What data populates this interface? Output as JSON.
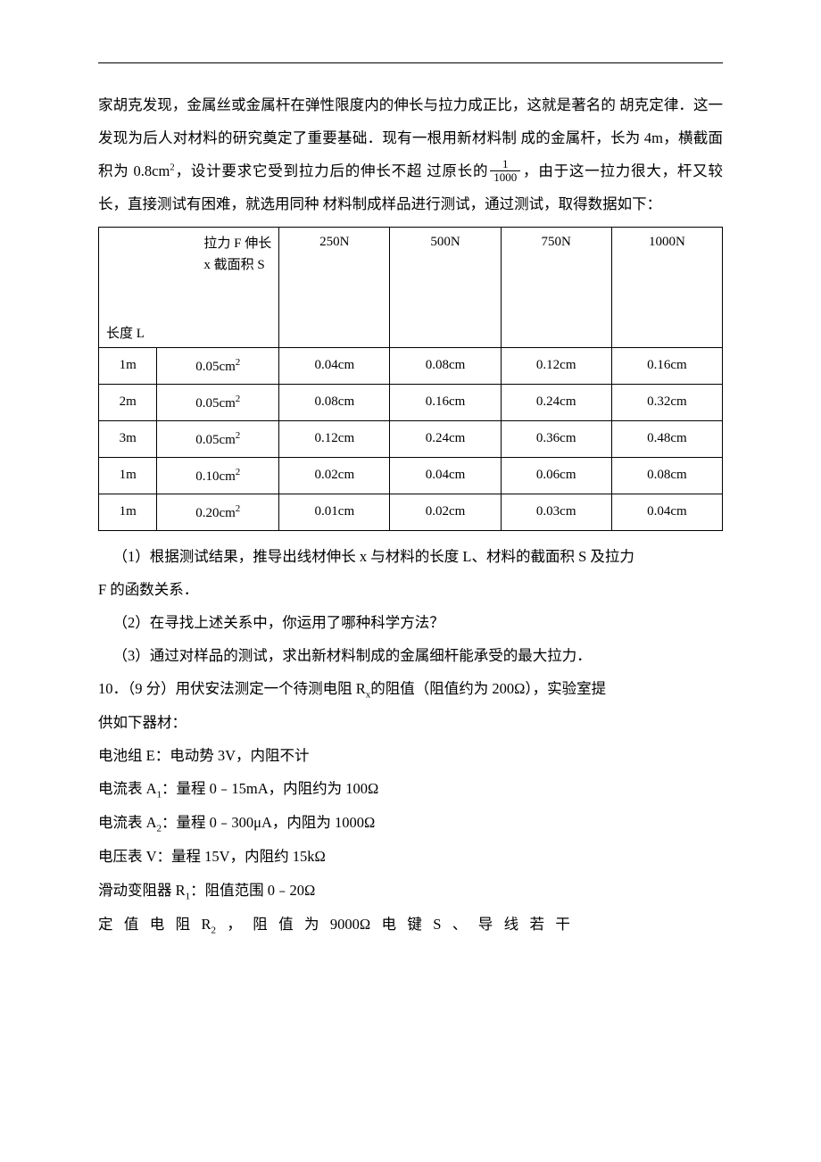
{
  "intro": {
    "l1": "家胡克发现，金属丝或金属杆在弹性限度内的伸长与拉力成正比，这就是著名的",
    "l2": "胡克定律．这一发现为后人对材料的研究奠定了重要基础．现有一根用新材料制",
    "l3_a": "成的金属杆，长为 4m，横截面积为 0.8cm",
    "l3_b": "，设计要求它受到拉力后的伸长不超",
    "l4_a": "过原长的",
    "frac_num": "1",
    "frac_den": "1000",
    "l4_b": "，由于这一拉力很大，杆又较长，直接测试有困难，就选用同种",
    "l5": "材料制成样品进行测试，通过测试，取得数据如下："
  },
  "table": {
    "diag_top_1": "拉力 F 伸长",
    "diag_top_2": "x 截面积 S",
    "diag_bottom": "长度 L",
    "force_cols": [
      "250N",
      "500N",
      "750N",
      "1000N"
    ],
    "rows": [
      {
        "L": "1m",
        "S": "0.05cm",
        "vals": [
          "0.04cm",
          "0.08cm",
          "0.12cm",
          "0.16cm"
        ]
      },
      {
        "L": "2m",
        "S": "0.05cm",
        "vals": [
          "0.08cm",
          "0.16cm",
          "0.24cm",
          "0.32cm"
        ]
      },
      {
        "L": "3m",
        "S": "0.05cm",
        "vals": [
          "0.12cm",
          "0.24cm",
          "0.36cm",
          "0.48cm"
        ]
      },
      {
        "L": "1m",
        "S": "0.10cm",
        "vals": [
          "0.02cm",
          "0.04cm",
          "0.06cm",
          "0.08cm"
        ]
      },
      {
        "L": "1m",
        "S": "0.20cm",
        "vals": [
          "0.01cm",
          "0.02cm",
          "0.03cm",
          "0.04cm"
        ]
      }
    ]
  },
  "q": {
    "q1a": "（1）根据测试结果，推导出线材伸长 x 与材料的长度 L、材料的截面积 S 及拉力",
    "q1b": "F 的函数关系．",
    "q2": "（2）在寻找上述关系中，你运用了哪种科学方法？",
    "q3": "（3）通过对样品的测试，求出新材料制成的金属细杆能承受的最大拉力．",
    "p10a": "10．（9 分）用伏安法测定一个待测电阻 R",
    "p10b": "的阻值（阻值约为 200Ω），实验室提",
    "p10c": "供如下器材：",
    "battery": "电池组 E：电动势 3V，内阻不计",
    "a1a": "电流表 A",
    "a1b": "：量程 0﹣15mA，内阻约为 100Ω",
    "a2a": "电流表 A",
    "a2b": "：量程 0﹣300μA，内阻为 1000Ω",
    "v": "电压表 V：量程 15V，内阻约 15kΩ",
    "r1a": "滑动变阻器 R",
    "r1b": "：阻值范围 0﹣20Ω",
    "r2a": "定 值 电 阻  R",
    "r2b": " ，  阻 值 为   9000Ω       电 键  S 、 导 线 若 干"
  }
}
